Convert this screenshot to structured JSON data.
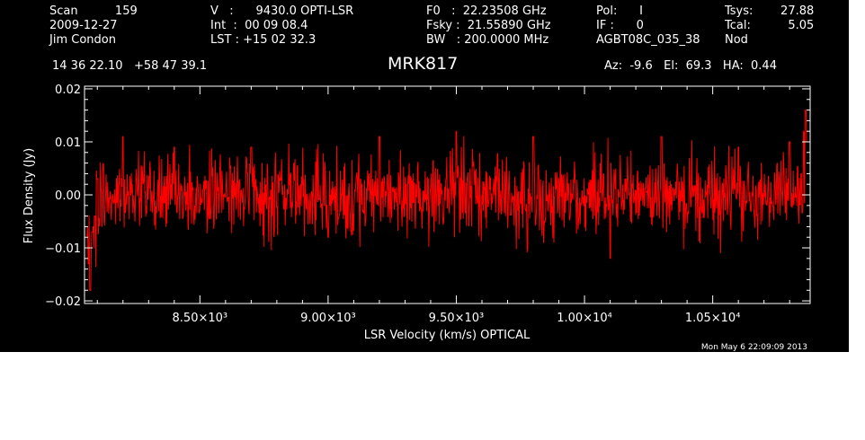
{
  "header": {
    "col1": [
      "Scan          159",
      "2009-12-27",
      "Jim Condon"
    ],
    "col2": [
      "V   :      9430.0 OPTI-LSR",
      "Int  :  00 09 08.4",
      "LST : +15 02 32.3"
    ],
    "col3": [
      "F0   :  22.23508 GHz",
      "Fsky :  21.55890 GHz",
      "BW   : 200.0000 MHz"
    ],
    "col4": [
      "Pol:      I",
      "IF :      0",
      "AGBT08C_035_38"
    ],
    "col5_labels": [
      "Tsys:",
      "Tcal:",
      "Nod"
    ],
    "col5_values": [
      "27.88",
      "5.05",
      ""
    ],
    "coords": "14 36 22.10   +58 47 39.1",
    "azel": "Az:  -9.6   El:  69.3   HA:  0.44",
    "timestamp": "Mon May  6 22:09:09 2013"
  },
  "colors": {
    "background": "#000000",
    "axes": "#ffffff",
    "series": "#ff0000"
  },
  "chart_data": {
    "type": "line",
    "title": "MRK817",
    "xlabel": "LSR Velocity (km/s) OPTICAL",
    "ylabel": "Flux Density (Jy)",
    "xlim": [
      8050,
      10880
    ],
    "ylim": [
      -0.0205,
      0.0205
    ],
    "xticks": [
      8500,
      9000,
      9500,
      10000,
      10500
    ],
    "xtick_labels": [
      "8.50×10³",
      "9.00×10³",
      "9.50×10³",
      "1.00×10⁴",
      "1.05×10⁴"
    ],
    "yticks": [
      0.02,
      0.01,
      0.0,
      -0.01,
      -0.02
    ],
    "ytick_labels": [
      "0.02",
      "0.01",
      "0.00",
      "−0.01",
      "−0.02"
    ],
    "grid": false,
    "series": [
      {
        "color": "#ff0000",
        "x_start": 8060,
        "x_end": 10870,
        "noise_rms": 0.0038,
        "baseline": 0.0,
        "values_sampled": [
          [
            8065,
            -0.013
          ],
          [
            8072,
            -0.018
          ],
          [
            8080,
            -0.007
          ],
          [
            8090,
            -0.004
          ],
          [
            8100,
            0.003
          ],
          [
            8200,
            0.011
          ],
          [
            8400,
            0.009
          ],
          [
            8700,
            0.009
          ],
          [
            9000,
            -0.008
          ],
          [
            9200,
            0.011
          ],
          [
            9500,
            0.012
          ],
          [
            9800,
            0.011
          ],
          [
            10100,
            -0.012
          ],
          [
            10300,
            0.011
          ],
          [
            10600,
            0.009
          ],
          [
            10800,
            0.01
          ],
          [
            10845,
            0.004
          ],
          [
            10855,
            0.012
          ],
          [
            10862,
            0.016
          ],
          [
            10868,
            0.01
          ]
        ]
      }
    ]
  }
}
